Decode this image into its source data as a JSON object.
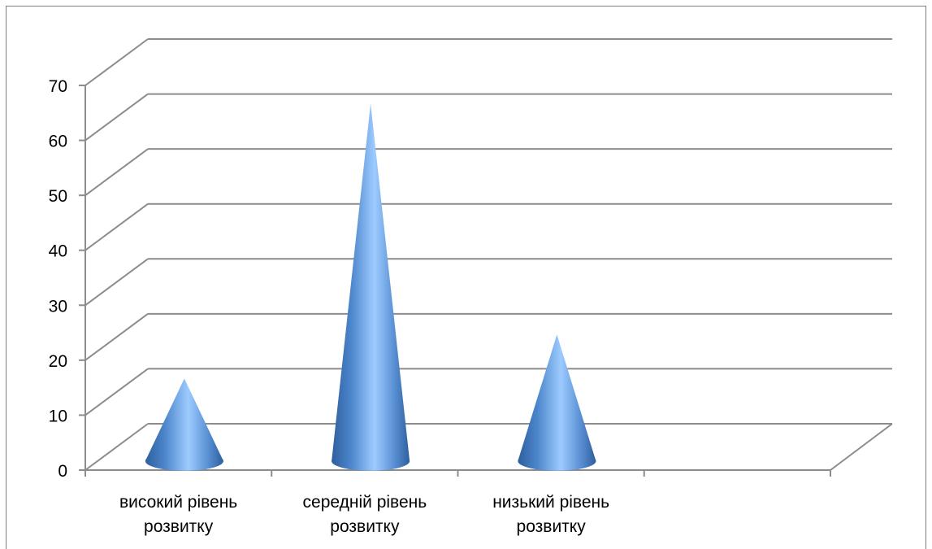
{
  "chart_data": {
    "type": "bar",
    "shape": "cone-3d",
    "categories": [
      [
        "високий рівень",
        "розвитку"
      ],
      [
        "середній рівень",
        "розвитку"
      ],
      [
        "низький рівень",
        "розвитку"
      ],
      [
        "",
        ""
      ]
    ],
    "values": [
      15,
      65,
      23,
      null
    ],
    "ylim": [
      0,
      70
    ],
    "yticks": [
      0,
      10,
      20,
      30,
      40,
      50,
      60,
      70
    ],
    "grid": true,
    "legend": "none",
    "colors": {
      "cone_dark": "#2e5f9e",
      "cone_mid": "#4d86cc",
      "cone_light": "#9dcbff",
      "grid": "#8c8c8c"
    }
  }
}
